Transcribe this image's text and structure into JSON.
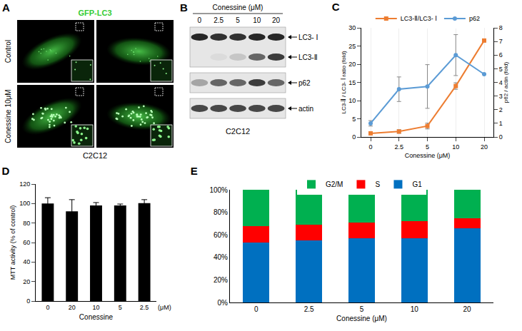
{
  "panels": {
    "A": {
      "label": "A",
      "channel": "GFP-LC3",
      "rows": [
        "Control",
        "Conessine 10μM"
      ],
      "cell_line": "C2C12"
    },
    "B": {
      "label": "B",
      "title": "Conessine (μM)",
      "lanes": [
        "0",
        "2.5",
        "5",
        "10",
        "20"
      ],
      "blots": [
        {
          "bands": [
            {
              "label": "LC3- Ⅰ",
              "intensity": [
                0.9,
                0.85,
                0.85,
                0.9,
                0.9
              ]
            },
            {
              "label": "LC3-Ⅱ",
              "intensity": [
                0,
                0.05,
                0.15,
                0.6,
                0.8
              ]
            }
          ]
        },
        {
          "bands": [
            {
              "label": "p62",
              "intensity": [
                0.3,
                0.6,
                0.6,
                0.8,
                0.6
              ]
            }
          ]
        },
        {
          "bands": [
            {
              "label": "actin",
              "intensity": [
                0.75,
                0.75,
                0.75,
                0.75,
                0.75
              ]
            }
          ]
        }
      ],
      "cell_line": "C2C12"
    }
  },
  "chart_data": [
    {
      "title": "C",
      "type": "line",
      "categories": [
        "0",
        "2.5",
        "5",
        "10",
        "20"
      ],
      "x_label": "Conessine (μM)",
      "y_label": "LC3-Ⅱ / LC3- Ⅰ ratio (fold)",
      "y2_label": "p62 / actin (fold)",
      "ylim": [
        0,
        30
      ],
      "yticks": [
        0,
        5,
        10,
        15,
        20,
        25,
        30
      ],
      "y2lim": [
        0,
        8
      ],
      "y2ticks": [
        0,
        1,
        2,
        3,
        4,
        5,
        6,
        7,
        8
      ],
      "legend": "top",
      "series": [
        {
          "name": "LC3-Ⅱ/LC3- Ⅰ",
          "color": "#ED7D31",
          "marker": "square",
          "values": [
            1,
            1.5,
            3,
            14,
            26.5
          ],
          "errors": [
            0.3,
            0.5,
            0.8,
            0.9,
            0
          ]
        },
        {
          "name": "p62",
          "color": "#5B9BD5",
          "marker": "circle",
          "axis": "y2",
          "values": [
            1,
            3.5,
            3.7,
            6,
            4.6
          ],
          "errors": [
            0.2,
            0.9,
            1.6,
            1.5,
            0
          ]
        }
      ]
    },
    {
      "title": "D",
      "type": "bar",
      "categories": [
        "0",
        "20",
        "10",
        "5",
        "2.5"
      ],
      "values": [
        100,
        92,
        98,
        98,
        100.5
      ],
      "errors": [
        6,
        12,
        3,
        1.5,
        3.5
      ],
      "color": "#000000",
      "x_label": "Conessine",
      "unit_label": "(μM)",
      "y_label": "MTT activity (% of control)",
      "ylim": [
        0,
        120
      ],
      "yticks": [
        0,
        20,
        40,
        60,
        80,
        100,
        120
      ]
    },
    {
      "title": "E",
      "type": "bar",
      "stacked": true,
      "categories": [
        "0",
        "2.5",
        "5",
        "10",
        "20"
      ],
      "x_label": "Conessine (μM)",
      "ylim": [
        0,
        100
      ],
      "yticks": [
        {
          "value": 0,
          "label": "0%"
        },
        {
          "value": 20,
          "label": "20%"
        },
        {
          "value": 40,
          "label": "40%"
        },
        {
          "value": 60,
          "label": "60%"
        },
        {
          "value": 80,
          "label": "80%"
        },
        {
          "value": 100,
          "label": "100%"
        }
      ],
      "legend": "top",
      "series": [
        {
          "name": "G1",
          "color": "#0070C0",
          "values": [
            53,
            55,
            57,
            57,
            66
          ]
        },
        {
          "name": "S",
          "color": "#FF0000",
          "values": [
            15,
            14,
            14,
            15,
            9
          ]
        },
        {
          "name": "G2/M",
          "color": "#00B050",
          "values": [
            32,
            31,
            29,
            28,
            25
          ]
        }
      ]
    }
  ]
}
